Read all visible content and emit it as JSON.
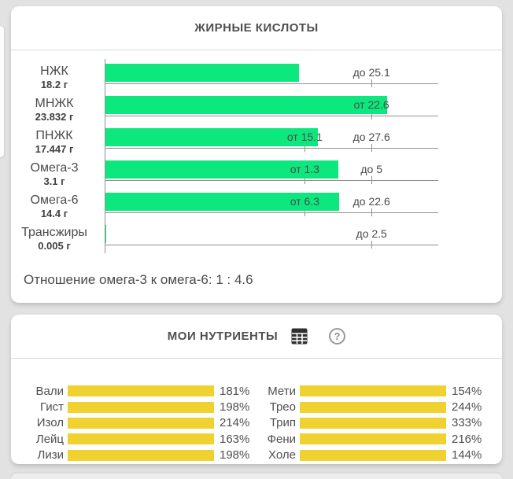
{
  "fatty_acids_card": {
    "title": "ЖИРНЫЕ КИСЛОТЫ",
    "ratio_text": "Отношение омега-3 к омега-6: 1 : 4.6"
  },
  "nutrients_card": {
    "title": "МОИ НУТРИЕНТЫ",
    "help_glyph": "?"
  },
  "chart_data": [
    {
      "type": "bar",
      "orientation": "horizontal",
      "title": "ЖИРНЫЕ КИСЛОТЫ",
      "bar_color": "#0de87e",
      "axis_color": "#8f8f8f",
      "unit": "г",
      "marker_positions_pct": {
        "from": 60,
        "to": 80
      },
      "rows": [
        {
          "name": "НЖК",
          "amount": "18.2 г",
          "value": 18.2,
          "to": 25.1,
          "to_label": "до 25.1"
        },
        {
          "name": "МНЖК",
          "amount": "23.832 г",
          "value": 23.832,
          "from": 22.6,
          "from_label": "от 22.6"
        },
        {
          "name": "ПНЖК",
          "amount": "17.447 г",
          "value": 17.447,
          "from": 15.1,
          "to": 27.6,
          "from_label": "от 15.1",
          "to_label": "до 27.6"
        },
        {
          "name": "Омега-3",
          "amount": "3.1 г",
          "value": 3.1,
          "from": 1.3,
          "to": 5,
          "from_label": "от 1.3",
          "to_label": "до 5"
        },
        {
          "name": "Омега-6",
          "amount": "14.4 г",
          "value": 14.4,
          "from": 6.3,
          "to": 22.6,
          "from_label": "от 6.3",
          "to_label": "до 22.6"
        },
        {
          "name": "Трансжиры",
          "amount": "0.005 г",
          "value": 0.005,
          "to": 2.5,
          "to_label": "до 2.5"
        }
      ]
    },
    {
      "type": "bar",
      "orientation": "horizontal",
      "title": "МОИ НУТРИЕНТЫ",
      "bar_color": "#efd22f",
      "unit": "%",
      "bar_display_cap_pct": 100,
      "columns": [
        [
          {
            "name": "Вали",
            "percent": 181,
            "label": "181%"
          },
          {
            "name": "Гист",
            "percent": 198,
            "label": "198%"
          },
          {
            "name": "Изол",
            "percent": 214,
            "label": "214%"
          },
          {
            "name": "Лейц",
            "percent": 163,
            "label": "163%"
          },
          {
            "name": "Лизи",
            "percent": 198,
            "label": "198%"
          }
        ],
        [
          {
            "name": "Мети",
            "percent": 154,
            "label": "154%"
          },
          {
            "name": "Трео",
            "percent": 244,
            "label": "244%"
          },
          {
            "name": "Трип",
            "percent": 333,
            "label": "333%"
          },
          {
            "name": "Фени",
            "percent": 216,
            "label": "216%"
          },
          {
            "name": "Холе",
            "percent": 144,
            "label": "144%"
          }
        ]
      ]
    }
  ]
}
